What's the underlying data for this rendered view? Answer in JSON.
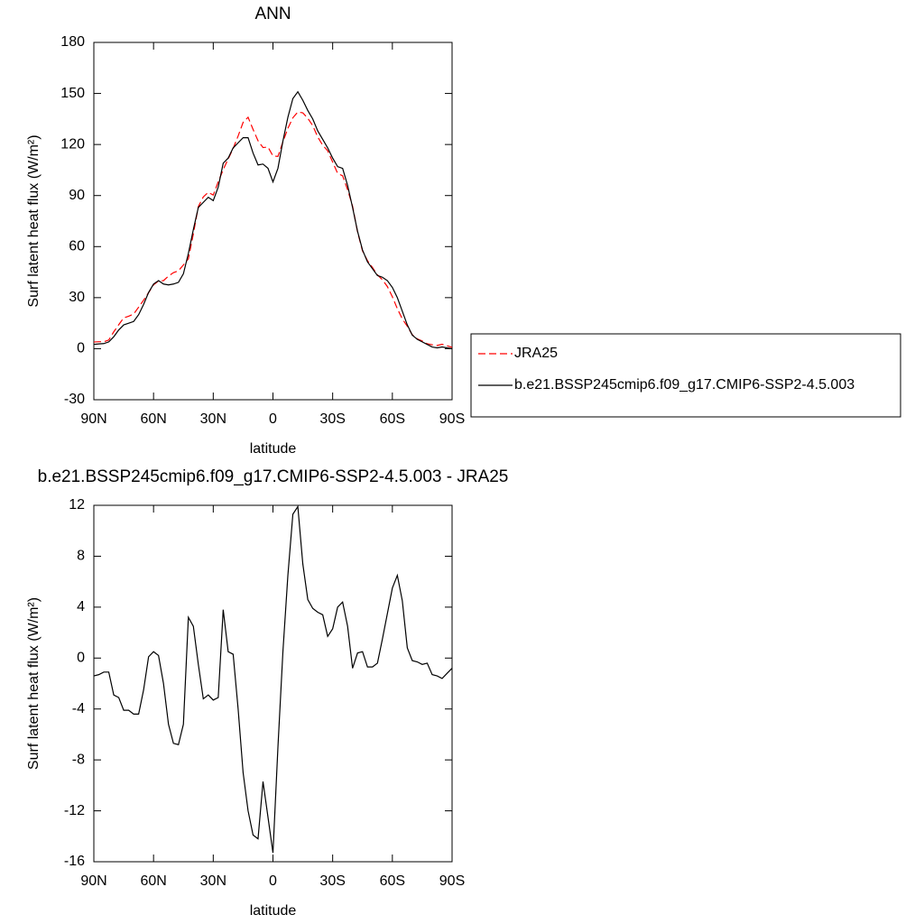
{
  "chart_data": [
    {
      "type": "line",
      "title": "ANN",
      "xlabel": "latitude",
      "ylabel": "Surf latent heat flux (W/m²)",
      "x": [
        90,
        87.5,
        85,
        82.5,
        80,
        77.5,
        75,
        72.5,
        70,
        67.5,
        65,
        62.5,
        60,
        57.5,
        55,
        52.5,
        50,
        47.5,
        45,
        42.5,
        40,
        37.5,
        35,
        32.5,
        30,
        27.5,
        25,
        22.5,
        20,
        17.5,
        15,
        12.5,
        10,
        7.5,
        5,
        2.5,
        0,
        -2.5,
        -5,
        -7.5,
        -10,
        -12.5,
        -15,
        -17.5,
        -20,
        -22.5,
        -25,
        -27.5,
        -30,
        -32.5,
        -35,
        -37.5,
        -40,
        -42.5,
        -45,
        -47.5,
        -50,
        -52.5,
        -55,
        -57.5,
        -60,
        -62.5,
        -65,
        -67.5,
        -70,
        -72.5,
        -75,
        -77.5,
        -80,
        -82.5,
        -85,
        -87.5,
        -90
      ],
      "series": [
        {
          "name": "JRA25",
          "color": "#ff0000",
          "linestyle": "dashed",
          "values": [
            3.9,
            4.1,
            4.1,
            5.1,
            9.9,
            14.1,
            18.1,
            19.1,
            20.4,
            24.4,
            28.5,
            32.9,
            37.5,
            39.8,
            40,
            42.7,
            44.7,
            45.8,
            49.2,
            52.8,
            67.5,
            83.5,
            89.2,
            91.9,
            90.3,
            98.1,
            105.2,
            111.5,
            117.7,
            125,
            133,
            136,
            128.9,
            122.2,
            118.2,
            118.5,
            113.3,
            113,
            121.5,
            129.5,
            135.7,
            139.1,
            138.6,
            135.4,
            131.1,
            124.4,
            119.6,
            116.3,
            109.7,
            103,
            101.6,
            93.5,
            83.8,
            68.6,
            57.5,
            51.7,
            47.7,
            43.4,
            40.5,
            36.5,
            30.5,
            23.5,
            17.5,
            13.2,
            8.2,
            5.8,
            4.5,
            2.9,
            2.3,
            1.9,
            2.6,
            1.7,
            0.8
          ]
        },
        {
          "name": "b.e21.BSSP245cmip6.f09_g17.CMIP6-SSP2-4.5.003",
          "color": "#000000",
          "linestyle": "solid",
          "values": [
            2.5,
            2.8,
            3,
            4,
            7,
            11,
            14,
            15,
            16,
            20,
            26,
            33,
            38,
            40,
            38,
            37.5,
            38,
            39,
            44,
            56,
            70,
            83,
            86,
            89,
            87,
            95,
            109,
            112,
            118,
            121,
            124,
            124,
            115,
            108,
            108.5,
            106,
            98,
            106,
            122,
            136,
            147,
            151,
            146,
            140,
            135,
            128,
            123,
            118,
            112,
            107,
            106,
            96,
            83,
            69,
            58,
            51,
            47,
            43,
            42,
            40,
            36,
            30,
            22,
            14,
            8,
            5.5,
            4,
            2.5,
            1,
            0.5,
            1,
            0.5,
            0
          ]
        }
      ],
      "xlim": [
        90,
        -90
      ],
      "ylim": [
        -30,
        180
      ],
      "xticks": [
        {
          "value": 90,
          "label": "90N"
        },
        {
          "value": 60,
          "label": "60N"
        },
        {
          "value": 30,
          "label": "30N"
        },
        0,
        {
          "value": -30,
          "label": "30S"
        },
        {
          "value": -60,
          "label": "60S"
        },
        {
          "value": -90,
          "label": "90S"
        }
      ],
      "yticks": [
        -30,
        0,
        30,
        60,
        90,
        120,
        150,
        180
      ],
      "legend": "right"
    },
    {
      "type": "line",
      "title": "b.e21.BSSP245cmip6.f09_g17.CMIP6-SSP2-4.5.003 - JRA25",
      "xlabel": "latitude",
      "ylabel": "Surf latent heat flux (W/m²)",
      "x": [
        90,
        87.5,
        85,
        82.5,
        80,
        77.5,
        75,
        72.5,
        70,
        67.5,
        65,
        62.5,
        60,
        57.5,
        55,
        52.5,
        50,
        47.5,
        45,
        42.5,
        40,
        37.5,
        35,
        32.5,
        30,
        27.5,
        25,
        22.5,
        20,
        17.5,
        15,
        12.5,
        10,
        7.5,
        5,
        2.5,
        0,
        -2.5,
        -5,
        -7.5,
        -10,
        -12.5,
        -15,
        -17.5,
        -20,
        -22.5,
        -25,
        -27.5,
        -30,
        -32.5,
        -35,
        -37.5,
        -40,
        -42.5,
        -45,
        -47.5,
        -50,
        -52.5,
        -55,
        -57.5,
        -60,
        -62.5,
        -65,
        -67.5,
        -70,
        -72.5,
        -75,
        -77.5,
        -80,
        -82.5,
        -85,
        -87.5,
        -90
      ],
      "series": [
        {
          "color": "#000000",
          "linestyle": "solid",
          "values": [
            -1.4,
            -1.3,
            -1.1,
            -1.1,
            -2.9,
            -3.1,
            -4.1,
            -4.1,
            -4.4,
            -4.4,
            -2.5,
            0.1,
            0.5,
            0.2,
            -2.0,
            -5.2,
            -6.7,
            -6.8,
            -5.2,
            3.2,
            2.5,
            -0.5,
            -3.2,
            -2.9,
            -3.3,
            -3.1,
            3.8,
            0.5,
            0.3,
            -4.0,
            -9.0,
            -12.0,
            -13.9,
            -14.2,
            -9.7,
            -12.5,
            -15.3,
            -7.0,
            0.5,
            6.5,
            11.3,
            11.9,
            7.4,
            4.6,
            3.9,
            3.6,
            3.4,
            1.7,
            2.3,
            4.0,
            4.4,
            2.5,
            -0.8,
            0.4,
            0.5,
            -0.7,
            -0.7,
            -0.4,
            1.5,
            3.5,
            5.5,
            6.5,
            4.5,
            0.8,
            -0.2,
            -0.3,
            -0.5,
            -0.4,
            -1.3,
            -1.4,
            -1.6,
            -1.2,
            -0.8
          ]
        }
      ],
      "xlim": [
        90,
        -90
      ],
      "ylim": [
        -16,
        12
      ],
      "xticks": [
        {
          "value": 90,
          "label": "90N"
        },
        {
          "value": 60,
          "label": "60N"
        },
        {
          "value": 30,
          "label": "30N"
        },
        0,
        {
          "value": -30,
          "label": "30S"
        },
        {
          "value": -60,
          "label": "60S"
        },
        {
          "value": -90,
          "label": "90S"
        }
      ],
      "yticks": [
        -16,
        -12,
        -8,
        -4,
        0,
        4,
        8,
        12
      ]
    }
  ]
}
